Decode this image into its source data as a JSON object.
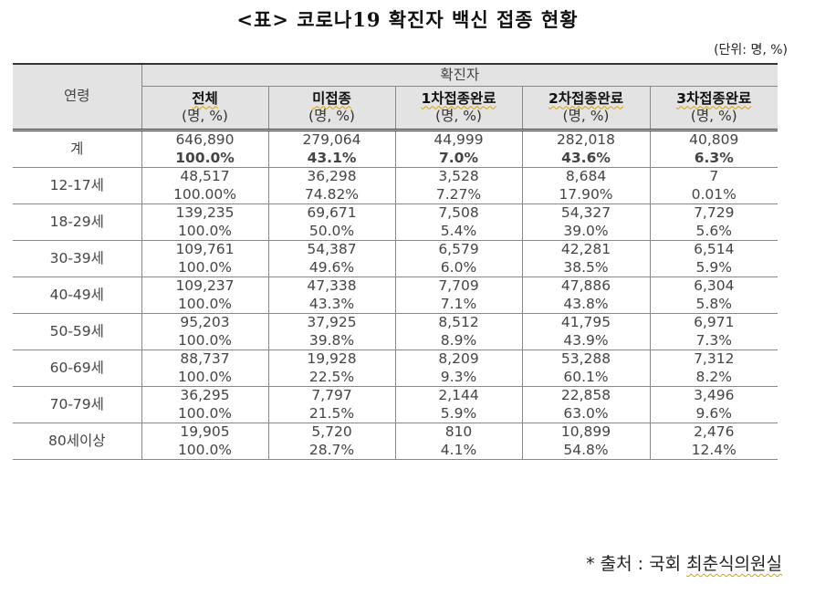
{
  "title": "<표> 코로나19 확진자 백신 접종 현황",
  "unit": "(단위: 명, %)",
  "table": {
    "age_header": "연령",
    "group_header": "확진자",
    "columns": [
      {
        "label": "전체",
        "unit": "(명, %)"
      },
      {
        "label": "미접종",
        "unit": "(명, %)"
      },
      {
        "label": "1차접종완료",
        "unit": "(명, %)"
      },
      {
        "label": "2차접종완료",
        "unit": "(명, %)"
      },
      {
        "label": "3차접종완료",
        "unit": "(명, %)"
      }
    ],
    "rows": [
      {
        "age": "계",
        "counts": [
          "646,890",
          "279,064",
          "44,999",
          "282,018",
          "40,809"
        ],
        "pcts": [
          "100.0%",
          "43.1%",
          "7.0%",
          "43.6%",
          "6.3%"
        ]
      },
      {
        "age": "12-17세",
        "counts": [
          "48,517",
          "36,298",
          "3,528",
          "8,684",
          "7"
        ],
        "pcts": [
          "100.00%",
          "74.82%",
          "7.27%",
          "17.90%",
          "0.01%"
        ]
      },
      {
        "age": "18-29세",
        "counts": [
          "139,235",
          "69,671",
          "7,508",
          "54,327",
          "7,729"
        ],
        "pcts": [
          "100.0%",
          "50.0%",
          "5.4%",
          "39.0%",
          "5.6%"
        ]
      },
      {
        "age": "30-39세",
        "counts": [
          "109,761",
          "54,387",
          "6,579",
          "42,281",
          "6,514"
        ],
        "pcts": [
          "100.0%",
          "49.6%",
          "6.0%",
          "38.5%",
          "5.9%"
        ]
      },
      {
        "age": "40-49세",
        "counts": [
          "109,237",
          "47,338",
          "7,709",
          "47,886",
          "6,304"
        ],
        "pcts": [
          "100.0%",
          "43.3%",
          "7.1%",
          "43.8%",
          "5.8%"
        ]
      },
      {
        "age": "50-59세",
        "counts": [
          "95,203",
          "37,925",
          "8,512",
          "41,795",
          "6,971"
        ],
        "pcts": [
          "100.0%",
          "39.8%",
          "8.9%",
          "43.9%",
          "7.3%"
        ]
      },
      {
        "age": "60-69세",
        "counts": [
          "88,737",
          "19,928",
          "8,209",
          "53,288",
          "7,312"
        ],
        "pcts": [
          "100.0%",
          "22.5%",
          "9.3%",
          "60.1%",
          "8.2%"
        ]
      },
      {
        "age": "70-79세",
        "counts": [
          "36,295",
          "7,797",
          "2,144",
          "22,858",
          "3,496"
        ],
        "pcts": [
          "100.0%",
          "21.5%",
          "5.9%",
          "63.0%",
          "9.6%"
        ]
      },
      {
        "age": "80세이상",
        "counts": [
          "19,905",
          "5,720",
          "810",
          "10,899",
          "2,476"
        ],
        "pcts": [
          "100.0%",
          "28.7%",
          "4.1%",
          "54.8%",
          "12.4%"
        ]
      }
    ]
  },
  "source": {
    "prefix": "* 출처 : 국회 ",
    "name": "최춘식의원실"
  },
  "colors": {
    "header_bg": "#e3e3e3",
    "border": "#333333",
    "spellcheck_underline": "#d9a000"
  }
}
